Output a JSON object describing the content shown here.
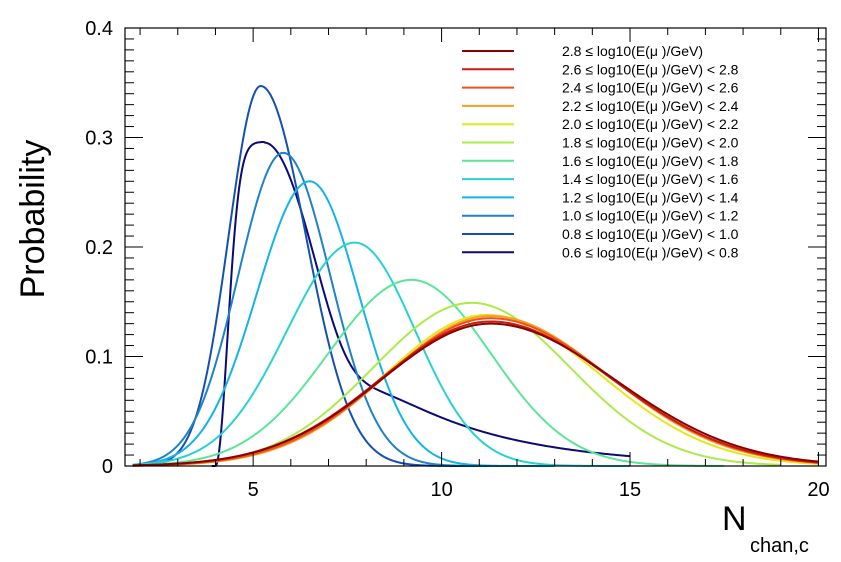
{
  "chart_data": {
    "type": "line",
    "title": "",
    "xlabel_main": "N",
    "xlabel_sub": "chan,c",
    "ylabel": "Probability",
    "xlim": [
      1.6,
      20.2
    ],
    "ylim": [
      0,
      0.4
    ],
    "x_ticks": [
      5,
      10,
      15,
      20
    ],
    "x_tick_labels": [
      "5",
      "10",
      "15",
      "20"
    ],
    "y_ticks": [
      0,
      0.1,
      0.2,
      0.3,
      0.4
    ],
    "y_tick_labels": [
      "0",
      "0.1",
      "0.2",
      "0.3",
      "0.4"
    ],
    "grid": false,
    "legend_position": "top-right",
    "series": [
      {
        "name": "2.8 ≤ log10(E(μ )/GeV)",
        "color": "#8b0000",
        "shape": "gamma",
        "peak_x": 11.3,
        "peak_y": 0.13,
        "sigma_left": 2.9,
        "sigma_right": 3.3,
        "x_start": 1.8,
        "x_end": 20.0
      },
      {
        "name": "2.6 ≤ log10(E(μ )/GeV) < 2.8",
        "color": "#c81c10",
        "shape": "gamma",
        "peak_x": 11.3,
        "peak_y": 0.132,
        "sigma_left": 2.9,
        "sigma_right": 3.2,
        "x_start": 1.8,
        "x_end": 20.0
      },
      {
        "name": "2.4 ≤ log10(E(μ )/GeV) < 2.6",
        "color": "#f0501e",
        "shape": "gamma",
        "peak_x": 11.3,
        "peak_y": 0.135,
        "sigma_left": 2.8,
        "sigma_right": 3.15,
        "x_start": 1.8,
        "x_end": 20.0
      },
      {
        "name": "2.2 ≤ log10(E(μ )/GeV) < 2.4",
        "color": "#f5a020",
        "shape": "gamma",
        "peak_x": 11.3,
        "peak_y": 0.137,
        "sigma_left": 2.75,
        "sigma_right": 3.1,
        "x_start": 1.8,
        "x_end": 20.0
      },
      {
        "name": "2.0 ≤ log10(E(μ )/GeV) < 2.2",
        "color": "#e6e61e",
        "shape": "gamma",
        "peak_x": 11.2,
        "peak_y": 0.138,
        "sigma_left": 2.7,
        "sigma_right": 3.0,
        "x_start": 1.8,
        "x_end": 20.0
      },
      {
        "name": "1.8 ≤ log10(E(μ )/GeV) < 2.0",
        "color": "#aaeb4b",
        "shape": "gamma",
        "peak_x": 10.8,
        "peak_y": 0.149,
        "sigma_left": 2.6,
        "sigma_right": 2.6,
        "x_start": 1.8,
        "x_end": 19.0
      },
      {
        "name": "1.6 ≤ log10(E(μ )/GeV) < 1.8",
        "color": "#5ae696",
        "shape": "gamma",
        "peak_x": 9.2,
        "peak_y": 0.17,
        "sigma_left": 2.2,
        "sigma_right": 2.1,
        "x_start": 1.8,
        "x_end": 17.5
      },
      {
        "name": "1.4 ≤ log10(E(μ )/GeV) < 1.6",
        "color": "#28d2d2",
        "shape": "gamma",
        "peak_x": 7.7,
        "peak_y": 0.204,
        "sigma_left": 1.8,
        "sigma_right": 1.6,
        "x_start": 1.8,
        "x_end": 15.0
      },
      {
        "name": "1.2 ≤ log10(E(μ )/GeV) < 1.4",
        "color": "#14b4e6",
        "shape": "gamma",
        "peak_x": 6.5,
        "peak_y": 0.26,
        "sigma_left": 1.4,
        "sigma_right": 1.3,
        "x_start": 1.8,
        "x_end": 13.0
      },
      {
        "name": "1.0 ≤ log10(E(μ )/GeV) < 1.2",
        "color": "#1e82c8",
        "shape": "gamma",
        "peak_x": 5.8,
        "peak_y": 0.286,
        "sigma_left": 1.2,
        "sigma_right": 1.25,
        "x_start": 1.8,
        "x_end": 12.5
      },
      {
        "name": "0.8 ≤ log10(E(μ )/GeV) < 1.0",
        "color": "#1450b4",
        "shape": "gamma",
        "peak_x": 5.2,
        "peak_y": 0.347,
        "sigma_left": 0.85,
        "sigma_right": 1.2,
        "x_start": 1.8,
        "x_end": 12.0
      },
      {
        "name": "0.6 ≤ log10(E(μ )/GeV) < 0.8",
        "color": "#0a0a78",
        "shape": "cutoff",
        "peak_x": 5.3,
        "peak_y": 0.296,
        "x_start": 3.9,
        "x_end": 15.0,
        "cut_x": 4.0,
        "rise_scale": 0.45,
        "tail_decay": 0.42,
        "tail_amp": 0.2,
        "tail_rate": 0.32,
        "mid": 7.6
      }
    ]
  }
}
